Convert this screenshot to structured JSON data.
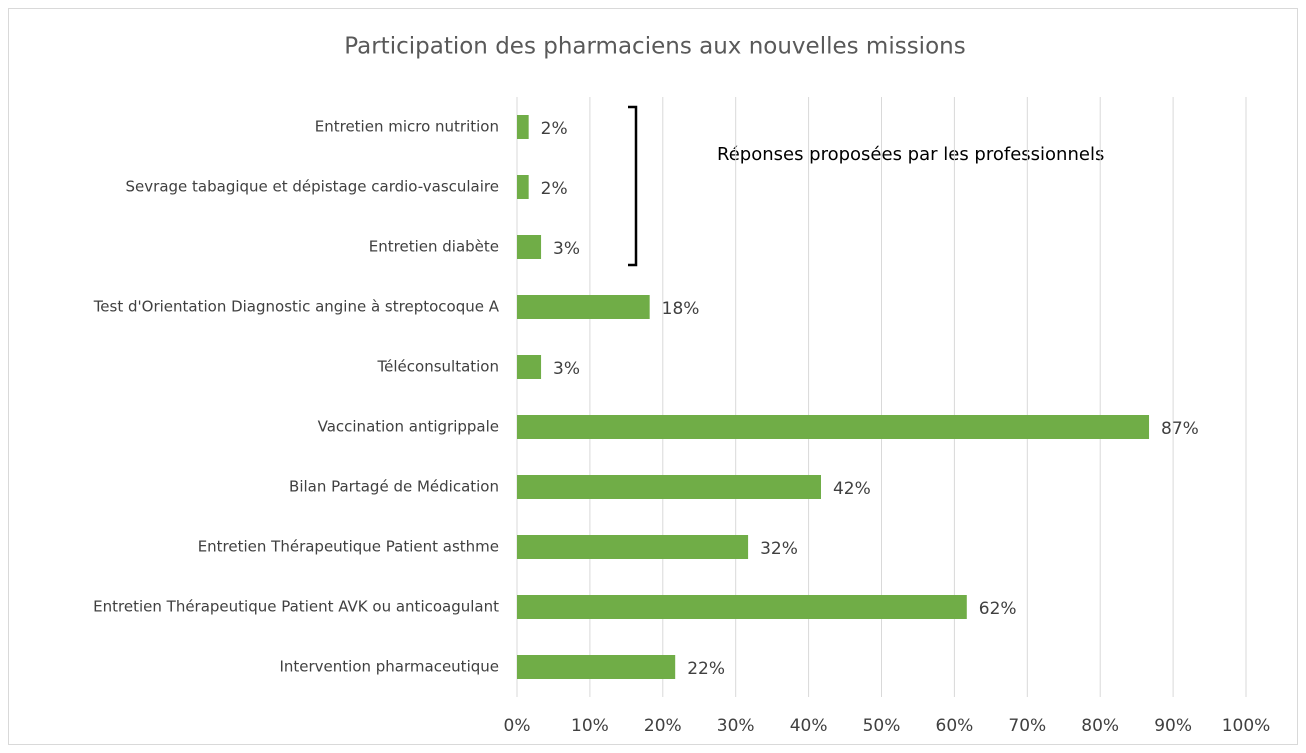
{
  "chart_data": {
    "type": "barh",
    "title": "Participation des pharmaciens aux nouvelles missions",
    "annotation": "Réponses proposées par les professionnels",
    "categories": [
      "Entretien micro nutrition",
      "Sevrage tabagique et dépistage cardio-vasculaire",
      "Entretien diabète",
      "Test d'Orientation Diagnostic angine à streptocoque A",
      "Téléconsultation",
      "Vaccination antigrippale",
      "Bilan Partagé de Médication",
      "Entretien Thérapeutique Patient asthme",
      "Entretien Thérapeutique Patient AVK ou anticoagulant",
      "Intervention pharmaceutique"
    ],
    "values": [
      1.6,
      1.6,
      3.3,
      18.2,
      3.3,
      86.7,
      41.7,
      31.7,
      61.7,
      21.7
    ],
    "value_labels": [
      "2%",
      "2%",
      "3%",
      "18%",
      "3%",
      "87%",
      "42%",
      "32%",
      "62%",
      "22%"
    ],
    "color": "#70ad47",
    "xlim": [
      0,
      100
    ],
    "xticks": [
      {
        "value": 0,
        "label": "0%"
      },
      {
        "value": 10,
        "label": "10%"
      },
      {
        "value": 20,
        "label": "20%"
      },
      {
        "value": 30,
        "label": "30%"
      },
      {
        "value": 40,
        "label": "40%"
      },
      {
        "value": 50,
        "label": "50%"
      },
      {
        "value": 60,
        "label": "60%"
      },
      {
        "value": 70,
        "label": "70%"
      },
      {
        "value": 80,
        "label": "80%"
      },
      {
        "value": 90,
        "label": "90%"
      },
      {
        "value": 100,
        "label": "100%"
      }
    ],
    "grid": true
  }
}
